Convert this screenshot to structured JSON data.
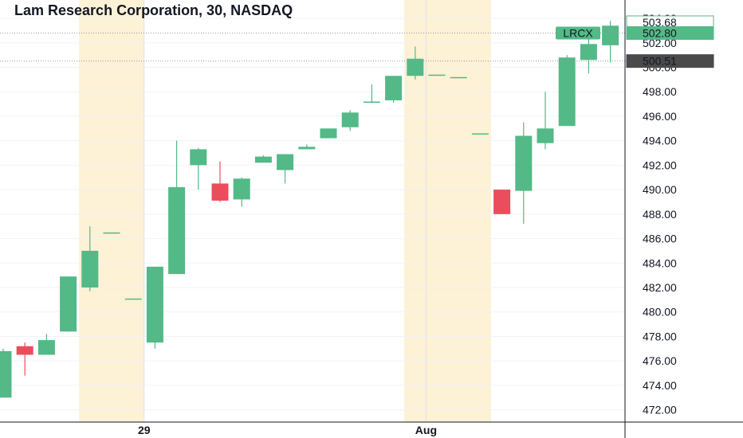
{
  "chart_data": {
    "type": "candlestick",
    "title": "Lam Research Corporation, 30, NASDAQ",
    "symbol": "LRCX",
    "ylim": [
      471,
      505.5
    ],
    "y_ticks": [
      "472.00",
      "474.00",
      "476.00",
      "478.00",
      "480.00",
      "482.00",
      "484.00",
      "486.00",
      "488.00",
      "490.00",
      "492.00",
      "494.00",
      "496.00",
      "498.00",
      "500.00",
      "502.00",
      "504.00"
    ],
    "x_labels": [
      {
        "text": "29",
        "index": 6.5
      },
      {
        "text": "Aug",
        "index": 19.5
      }
    ],
    "highlight_bands": [
      {
        "from": 4,
        "to": 6
      },
      {
        "from": 19,
        "to": 22
      }
    ],
    "candles": [
      {
        "o": 473.0,
        "h": 477.0,
        "l": 473.0,
        "c": 476.8
      },
      {
        "o": 477.2,
        "h": 477.5,
        "l": 474.8,
        "c": 476.5
      },
      {
        "o": 476.5,
        "h": 478.2,
        "l": 476.5,
        "c": 477.7
      },
      {
        "o": 478.4,
        "h": 482.9,
        "l": 478.4,
        "c": 482.9
      },
      {
        "o": 482.0,
        "h": 487.0,
        "l": 481.7,
        "c": 485.0
      },
      {
        "o": 486.5,
        "h": 486.5,
        "l": 486.5,
        "c": 486.5
      },
      {
        "o": 481.1,
        "h": 481.1,
        "l": 481.1,
        "c": 481.1
      },
      {
        "o": 477.5,
        "h": 483.7,
        "l": 477.0,
        "c": 483.7
      },
      {
        "o": 483.1,
        "h": 494.0,
        "l": 483.1,
        "c": 490.2
      },
      {
        "o": 492.0,
        "h": 493.4,
        "l": 490.0,
        "c": 493.3
      },
      {
        "o": 490.5,
        "h": 492.3,
        "l": 489.0,
        "c": 489.1
      },
      {
        "o": 489.2,
        "h": 491.0,
        "l": 488.6,
        "c": 490.9
      },
      {
        "o": 492.2,
        "h": 492.8,
        "l": 492.2,
        "c": 492.7
      },
      {
        "o": 491.6,
        "h": 492.9,
        "l": 490.5,
        "c": 492.9
      },
      {
        "o": 493.3,
        "h": 493.7,
        "l": 493.3,
        "c": 493.5
      },
      {
        "o": 494.2,
        "h": 495.0,
        "l": 494.2,
        "c": 495.0
      },
      {
        "o": 495.1,
        "h": 496.5,
        "l": 494.8,
        "c": 496.3
      },
      {
        "o": 497.1,
        "h": 498.6,
        "l": 497.1,
        "c": 497.2
      },
      {
        "o": 497.3,
        "h": 499.3,
        "l": 497.1,
        "c": 499.3
      },
      {
        "o": 499.3,
        "h": 501.7,
        "l": 499.0,
        "c": 500.7
      },
      {
        "o": 499.4,
        "h": 499.4,
        "l": 499.4,
        "c": 499.4
      },
      {
        "o": 499.2,
        "h": 499.2,
        "l": 499.2,
        "c": 499.2
      },
      {
        "o": 494.6,
        "h": 494.6,
        "l": 494.6,
        "c": 494.6
      },
      {
        "o": 490.0,
        "h": 490.0,
        "l": 488.0,
        "c": 488.0
      },
      {
        "o": 489.9,
        "h": 495.5,
        "l": 487.2,
        "c": 494.4
      },
      {
        "o": 493.8,
        "h": 498.0,
        "l": 493.3,
        "c": 495.0
      },
      {
        "o": 495.2,
        "h": 501.0,
        "l": 495.2,
        "c": 500.8
      },
      {
        "o": 500.6,
        "h": 502.3,
        "l": 499.5,
        "c": 501.9
      },
      {
        "o": 501.8,
        "h": 503.8,
        "l": 500.4,
        "c": 503.4
      }
    ],
    "price_labels": [
      {
        "text": "503.68",
        "value": 503.68,
        "kind": "outline"
      },
      {
        "text": "502.80",
        "value": 502.8,
        "kind": "filled"
      },
      {
        "text": "500.51",
        "value": 500.51,
        "kind": "dark"
      }
    ],
    "colors": {
      "up": "#53b987",
      "down": "#eb4d5c",
      "band": "#fdf1d6",
      "grid": "#f0f3fa",
      "axis_line": "#131722",
      "dark_label": "#4a4a4a"
    }
  }
}
